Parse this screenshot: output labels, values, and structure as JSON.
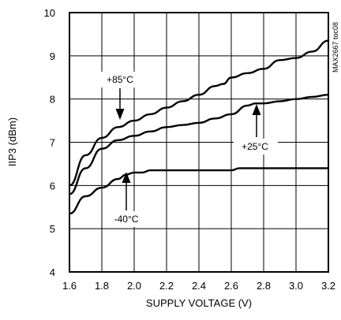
{
  "chart_data": {
    "type": "line",
    "title": "",
    "xlabel": "SUPPLY VOLTAGE (V)",
    "ylabel": "IIP3 (dBm)",
    "xlim": [
      1.6,
      3.2
    ],
    "ylim": [
      4,
      10
    ],
    "xticks": [
      "1.6",
      "1.8",
      "2.0",
      "2.2",
      "2.4",
      "2.6",
      "2.8",
      "3.0",
      "3.2"
    ],
    "yticks": [
      "4",
      "5",
      "6",
      "7",
      "8",
      "9",
      "10"
    ],
    "grid": true,
    "series": [
      {
        "name": "+85°C",
        "x": [
          1.6,
          1.7,
          1.8,
          1.9,
          2.0,
          2.1,
          2.2,
          2.3,
          2.4,
          2.5,
          2.55,
          2.6,
          2.7,
          2.8,
          2.9,
          3.0,
          3.1,
          3.2
        ],
        "y": [
          6.0,
          6.7,
          7.1,
          7.35,
          7.5,
          7.65,
          7.8,
          7.95,
          8.1,
          8.3,
          8.35,
          8.5,
          8.6,
          8.7,
          8.9,
          8.95,
          9.1,
          9.35
        ]
      },
      {
        "name": "+25°C",
        "x": [
          1.6,
          1.7,
          1.8,
          1.9,
          2.0,
          2.1,
          2.2,
          2.3,
          2.4,
          2.5,
          2.6,
          2.7,
          2.75,
          2.8,
          2.9,
          3.0,
          3.1,
          3.2
        ],
        "y": [
          5.8,
          6.4,
          6.85,
          7.05,
          7.15,
          7.25,
          7.35,
          7.4,
          7.45,
          7.55,
          7.65,
          7.85,
          7.9,
          7.9,
          7.95,
          8.0,
          8.05,
          8.1
        ]
      },
      {
        "name": "-40°C",
        "x": [
          1.6,
          1.7,
          1.8,
          1.9,
          1.95,
          2.0,
          2.05,
          2.1,
          2.2,
          2.4,
          2.6,
          2.65,
          2.8,
          3.0,
          3.2
        ],
        "y": [
          5.35,
          5.75,
          5.95,
          6.15,
          6.25,
          6.3,
          6.3,
          6.35,
          6.35,
          6.35,
          6.35,
          6.4,
          6.4,
          6.4,
          6.4
        ]
      }
    ],
    "annotations": [
      "+85°C",
      "+25°C",
      "-40°C"
    ],
    "figure_code": "MAX2667 toc08"
  }
}
